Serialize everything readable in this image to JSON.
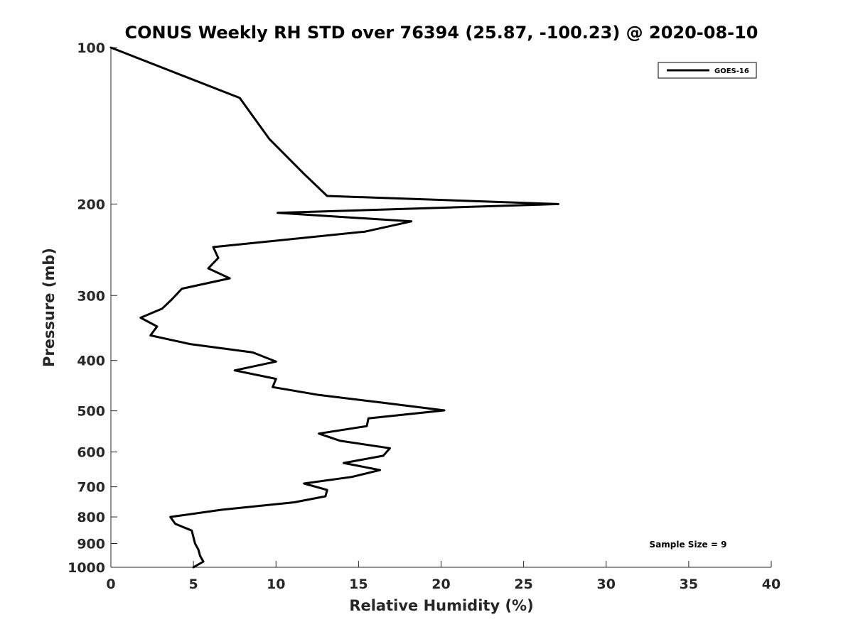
{
  "chart_data": {
    "type": "line",
    "title": "CONUS Weekly RH STD over 76394 (25.87, -100.23) @ 2020-08-10",
    "xlabel": "Relative Humidity (%)",
    "ylabel": "Pressure (mb)",
    "xlim": [
      0,
      40
    ],
    "ylim": [
      100,
      1000
    ],
    "y_scale": "log",
    "y_reversed": true,
    "grid": false,
    "legend_position": "top-right",
    "x_ticks": [
      "0",
      "5",
      "10",
      "15",
      "20",
      "25",
      "30",
      "35",
      "40"
    ],
    "y_ticks": [
      "100",
      "200",
      "300",
      "400",
      "500",
      "600",
      "700",
      "800",
      "900",
      "1000"
    ],
    "annotation": "Sample Size = 9",
    "line_color": "#000000",
    "series": [
      {
        "name": "GOES-16",
        "points": [
          [
            0,
            100
          ],
          [
            7.8,
            125
          ],
          [
            9.6,
            150
          ],
          [
            11.7,
            175
          ],
          [
            13.1,
            193
          ],
          [
            27.1,
            200
          ],
          [
            10.1,
            208
          ],
          [
            18.2,
            216
          ],
          [
            15.4,
            226
          ],
          [
            6.2,
            242
          ],
          [
            6.5,
            254
          ],
          [
            5.9,
            266
          ],
          [
            7.2,
            278
          ],
          [
            4.3,
            291
          ],
          [
            3.7,
            305
          ],
          [
            3.1,
            318
          ],
          [
            1.8,
            331
          ],
          [
            2.8,
            344
          ],
          [
            2.4,
            358
          ],
          [
            4.8,
            372
          ],
          [
            8.6,
            386
          ],
          [
            10.0,
            402
          ],
          [
            7.5,
            418
          ],
          [
            10.0,
            434
          ],
          [
            9.8,
            450
          ],
          [
            12.6,
            466
          ],
          [
            16.4,
            482
          ],
          [
            20.2,
            499
          ],
          [
            15.6,
            517
          ],
          [
            15.5,
            535
          ],
          [
            12.6,
            553
          ],
          [
            13.9,
            571
          ],
          [
            16.9,
            590
          ],
          [
            16.5,
            610
          ],
          [
            14.1,
            630
          ],
          [
            16.3,
            650
          ],
          [
            14.6,
            670
          ],
          [
            11.7,
            690
          ],
          [
            13.1,
            710
          ],
          [
            13.0,
            730
          ],
          [
            11.1,
            750
          ],
          [
            6.7,
            775
          ],
          [
            3.6,
            800
          ],
          [
            3.9,
            825
          ],
          [
            4.9,
            850
          ],
          [
            5.0,
            875
          ],
          [
            5.1,
            900
          ],
          [
            5.3,
            925
          ],
          [
            5.4,
            950
          ],
          [
            5.6,
            975
          ],
          [
            5.0,
            1000
          ]
        ]
      }
    ]
  }
}
